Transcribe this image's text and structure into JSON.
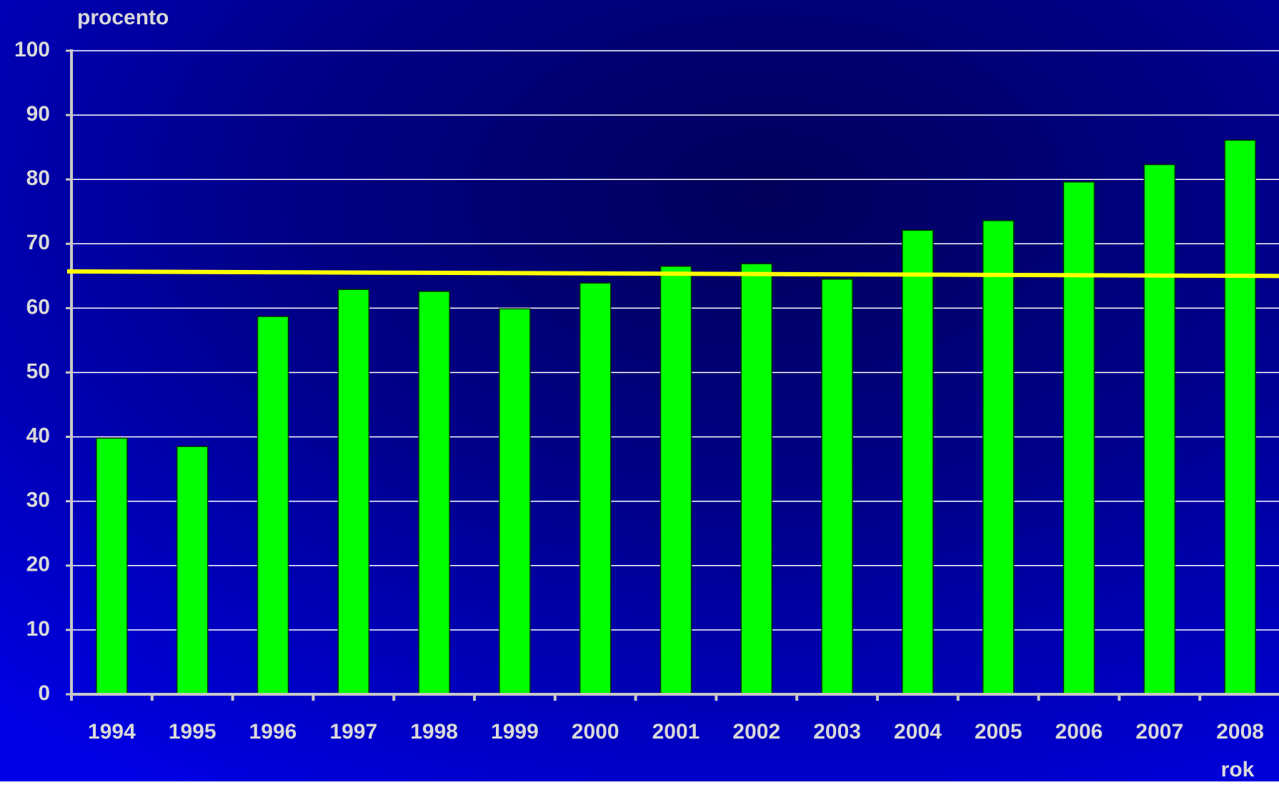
{
  "chart_data": {
    "type": "bar",
    "y_label": "procento",
    "x_label": "rok",
    "categories": [
      "1994",
      "1995",
      "1996",
      "1997",
      "1998",
      "1999",
      "2000",
      "2001",
      "2002",
      "2003",
      "2004",
      "2005",
      "2006",
      "2007",
      "2008"
    ],
    "values": [
      39.8,
      38.5,
      58.7,
      62.9,
      62.6,
      59.9,
      63.9,
      66.5,
      66.9,
      64.5,
      72.1,
      73.6,
      79.6,
      82.3,
      86.1
    ],
    "color": "#00ff00",
    "ylim": [
      0,
      100
    ],
    "yticks": [
      0,
      10,
      20,
      30,
      40,
      50,
      60,
      70,
      80,
      90,
      100
    ],
    "grid": true,
    "reference_line": {
      "start": 65.7,
      "end": 65.0,
      "color": "#ffff00"
    }
  }
}
